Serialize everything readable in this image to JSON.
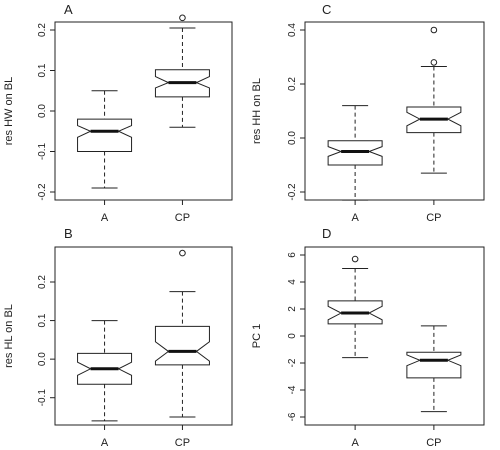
{
  "chart_data": [
    {
      "type": "boxplot",
      "panel_letter": "A",
      "ylabel": "res HW on BL",
      "categories": [
        "A",
        "CP"
      ],
      "ylim": [
        -0.2,
        0.2
      ],
      "yticks": [
        "-0.2",
        "-0.1",
        "0.0",
        "0.1",
        "0.2"
      ],
      "ytick_values": [
        -0.2,
        -0.1,
        0.0,
        0.1,
        0.2
      ],
      "boxes": [
        {
          "whisker_low": -0.19,
          "q1": -0.1,
          "median": -0.05,
          "q3": -0.02,
          "whisker_high": 0.05,
          "notch_low": -0.065,
          "notch_high": -0.036,
          "outliers": []
        },
        {
          "whisker_low": -0.04,
          "q1": 0.035,
          "median": 0.07,
          "q3": 0.102,
          "whisker_high": 0.205,
          "notch_low": 0.057,
          "notch_high": 0.085,
          "outliers": [
            0.23
          ]
        }
      ]
    },
    {
      "type": "boxplot",
      "panel_letter": "C",
      "ylabel": "res HH on BL",
      "categories": [
        "A",
        "CP"
      ],
      "ylim": [
        -0.2,
        0.4
      ],
      "yticks": [
        "-0.2",
        "0.0",
        "0.2",
        "0.4"
      ],
      "ytick_values": [
        -0.2,
        0.0,
        0.2,
        0.4
      ],
      "boxes": [
        {
          "whisker_low": -0.23,
          "q1": -0.1,
          "median": -0.05,
          "q3": -0.01,
          "whisker_high": 0.12,
          "notch_low": -0.068,
          "notch_high": -0.032,
          "outliers": []
        },
        {
          "whisker_low": -0.13,
          "q1": 0.02,
          "median": 0.07,
          "q3": 0.115,
          "whisker_high": 0.265,
          "notch_low": 0.045,
          "notch_high": 0.095,
          "outliers": [
            0.28,
            0.4
          ]
        }
      ]
    },
    {
      "type": "boxplot",
      "panel_letter": "B",
      "ylabel": "res HL on BL",
      "categories": [
        "A",
        "CP"
      ],
      "ylim": [
        -0.15,
        0.27
      ],
      "yticks": [
        "-0.1",
        "0.0",
        "0.1",
        "0.2"
      ],
      "ytick_values": [
        -0.1,
        0.0,
        0.1,
        0.2
      ],
      "boxes": [
        {
          "whisker_low": -0.16,
          "q1": -0.065,
          "median": -0.025,
          "q3": 0.015,
          "whisker_high": 0.1,
          "notch_low": -0.042,
          "notch_high": -0.008,
          "outliers": []
        },
        {
          "whisker_low": -0.15,
          "q1": -0.015,
          "median": 0.02,
          "q3": 0.085,
          "whisker_high": 0.175,
          "notch_low": -0.005,
          "notch_high": 0.045,
          "outliers": [
            0.275
          ]
        }
      ]
    },
    {
      "type": "boxplot",
      "panel_letter": "D",
      "ylabel": "PC 1",
      "categories": [
        "A",
        "CP"
      ],
      "ylim": [
        -6,
        6
      ],
      "yticks": [
        "-6",
        "-4",
        "-2",
        "0",
        "2",
        "4",
        "6"
      ],
      "ytick_values": [
        -6,
        -4,
        -2,
        0,
        2,
        4,
        6
      ],
      "boxes": [
        {
          "whisker_low": -1.6,
          "q1": 0.9,
          "median": 1.7,
          "q3": 2.6,
          "whisker_high": 5.0,
          "notch_low": 1.2,
          "notch_high": 2.2,
          "outliers": [
            5.7
          ]
        },
        {
          "whisker_low": -5.6,
          "q1": -3.1,
          "median": -1.8,
          "q3": -1.2,
          "whisker_high": 0.75,
          "notch_low": -2.2,
          "notch_high": -1.4,
          "outliers": []
        }
      ]
    }
  ]
}
